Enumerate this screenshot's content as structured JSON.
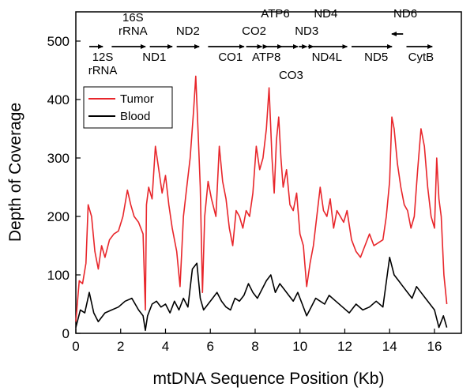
{
  "chart_data": {
    "type": "line",
    "xlabel": "mtDNA Sequence Position (Kb)",
    "ylabel": "Depth of Coverage",
    "xlim": [
      0,
      17.2
    ],
    "ylim": [
      0,
      550
    ],
    "xticks": [
      0,
      2,
      4,
      6,
      8,
      10,
      12,
      14,
      16
    ],
    "yticks": [
      0,
      100,
      200,
      300,
      400,
      500
    ],
    "legend_position": "top-left",
    "series": [
      {
        "name": "Tumor",
        "color": "#e8262b",
        "x": [
          0.0,
          0.15,
          0.3,
          0.45,
          0.55,
          0.7,
          0.85,
          1.0,
          1.15,
          1.3,
          1.5,
          1.7,
          1.9,
          2.1,
          2.3,
          2.45,
          2.6,
          2.8,
          3.0,
          3.1,
          3.15,
          3.25,
          3.4,
          3.55,
          3.7,
          3.85,
          4.0,
          4.15,
          4.3,
          4.5,
          4.65,
          4.8,
          4.95,
          5.1,
          5.25,
          5.35,
          5.45,
          5.55,
          5.65,
          5.75,
          5.9,
          6.05,
          6.25,
          6.4,
          6.55,
          6.7,
          6.85,
          7.0,
          7.15,
          7.3,
          7.45,
          7.6,
          7.75,
          7.9,
          8.05,
          8.2,
          8.35,
          8.5,
          8.62,
          8.75,
          8.85,
          8.95,
          9.05,
          9.15,
          9.25,
          9.4,
          9.55,
          9.7,
          9.85,
          10.0,
          10.15,
          10.3,
          10.45,
          10.6,
          10.75,
          10.9,
          11.05,
          11.2,
          11.35,
          11.5,
          11.65,
          11.8,
          11.95,
          12.1,
          12.3,
          12.5,
          12.7,
          12.9,
          13.1,
          13.3,
          13.5,
          13.7,
          13.85,
          14.0,
          14.1,
          14.2,
          14.35,
          14.5,
          14.65,
          14.8,
          14.95,
          15.1,
          15.25,
          15.4,
          15.55,
          15.7,
          15.85,
          16.0,
          16.1,
          16.2,
          16.3,
          16.42,
          16.55
        ],
        "values": [
          20,
          90,
          85,
          120,
          220,
          200,
          140,
          110,
          150,
          130,
          160,
          170,
          175,
          200,
          245,
          220,
          200,
          190,
          170,
          40,
          220,
          250,
          230,
          320,
          280,
          240,
          270,
          220,
          180,
          140,
          80,
          200,
          250,
          300,
          380,
          440,
          350,
          250,
          70,
          200,
          260,
          230,
          200,
          320,
          260,
          230,
          180,
          150,
          210,
          200,
          180,
          210,
          200,
          240,
          320,
          280,
          300,
          350,
          420,
          300,
          240,
          330,
          370,
          300,
          250,
          280,
          220,
          210,
          240,
          170,
          150,
          80,
          120,
          150,
          200,
          250,
          210,
          200,
          230,
          180,
          210,
          200,
          190,
          210,
          160,
          140,
          130,
          150,
          170,
          150,
          155,
          160,
          200,
          260,
          370,
          350,
          290,
          250,
          220,
          210,
          180,
          200,
          280,
          350,
          320,
          250,
          200,
          180,
          300,
          230,
          200,
          100,
          50
        ]
      },
      {
        "name": "Blood",
        "color": "#000000",
        "x": [
          0.0,
          0.2,
          0.4,
          0.6,
          0.8,
          1.0,
          1.3,
          1.6,
          1.9,
          2.2,
          2.5,
          2.8,
          3.0,
          3.1,
          3.2,
          3.4,
          3.6,
          3.8,
          4.0,
          4.2,
          4.4,
          4.6,
          4.8,
          5.0,
          5.2,
          5.4,
          5.55,
          5.7,
          5.9,
          6.1,
          6.3,
          6.5,
          6.7,
          6.9,
          7.1,
          7.3,
          7.5,
          7.7,
          7.9,
          8.1,
          8.3,
          8.5,
          8.7,
          8.9,
          9.1,
          9.3,
          9.5,
          9.7,
          9.9,
          10.1,
          10.3,
          10.5,
          10.7,
          10.9,
          11.1,
          11.3,
          11.6,
          11.9,
          12.2,
          12.5,
          12.8,
          13.1,
          13.4,
          13.7,
          14.0,
          14.2,
          14.4,
          14.6,
          14.8,
          15.0,
          15.2,
          15.4,
          15.6,
          15.8,
          16.0,
          16.2,
          16.4,
          16.55
        ],
        "values": [
          10,
          40,
          35,
          70,
          35,
          20,
          35,
          40,
          45,
          55,
          60,
          40,
          30,
          5,
          30,
          50,
          55,
          45,
          50,
          35,
          55,
          40,
          60,
          45,
          110,
          120,
          60,
          40,
          50,
          60,
          70,
          55,
          45,
          40,
          60,
          55,
          65,
          85,
          70,
          60,
          75,
          90,
          100,
          70,
          85,
          75,
          65,
          55,
          70,
          50,
          30,
          45,
          60,
          55,
          50,
          65,
          55,
          45,
          35,
          50,
          40,
          45,
          55,
          45,
          130,
          100,
          90,
          80,
          70,
          60,
          80,
          70,
          60,
          50,
          40,
          10,
          30,
          10
        ]
      }
    ],
    "genes": [
      {
        "name": "12S\nrRNA",
        "start": 0.6,
        "end": 1.2,
        "label_x": 1.2,
        "label_pos": "below"
      },
      {
        "name": "16S\nrRNA",
        "start": 1.6,
        "end": 3.1,
        "label_x": 2.55,
        "label_pos": "above"
      },
      {
        "name": "ND1",
        "start": 3.3,
        "end": 4.3,
        "label_x": 3.5,
        "label_pos": "below"
      },
      {
        "name": "ND2",
        "start": 4.5,
        "end": 5.5,
        "label_x": 5.0,
        "label_pos": "above"
      },
      {
        "name": "CO1",
        "start": 5.9,
        "end": 7.5,
        "label_x": 6.9,
        "label_pos": "below"
      },
      {
        "name": "CO2",
        "start": 7.6,
        "end": 8.3,
        "label_x": 7.95,
        "label_pos": "above"
      },
      {
        "name": "ATP8",
        "start": 8.35,
        "end": 8.55,
        "label_x": 8.5,
        "label_pos": "below"
      },
      {
        "name": "ATP6",
        "start": 8.55,
        "end": 9.2,
        "label_x": 8.9,
        "label_pos": "above2"
      },
      {
        "name": "CO3",
        "start": 9.2,
        "end": 9.9,
        "label_x": 9.6,
        "label_pos": "below2"
      },
      {
        "name": "ND3",
        "start": 9.95,
        "end": 10.3,
        "label_x": 10.3,
        "label_pos": "above"
      },
      {
        "name": "ND4L",
        "start": 10.35,
        "end": 10.6,
        "label_x": 11.2,
        "label_pos": "below"
      },
      {
        "name": "ND4",
        "start": 10.6,
        "end": 12.1,
        "label_x": 11.15,
        "label_pos": "above2"
      },
      {
        "name": "ND5",
        "start": 12.3,
        "end": 14.1,
        "label_x": 13.4,
        "label_pos": "below"
      },
      {
        "name": "ND6",
        "start": 14.6,
        "end": 14.1,
        "label_x": 14.7,
        "label_pos": "above2"
      },
      {
        "name": "CytB",
        "start": 14.75,
        "end": 15.9,
        "label_x": 15.4,
        "label_pos": "below"
      }
    ]
  }
}
